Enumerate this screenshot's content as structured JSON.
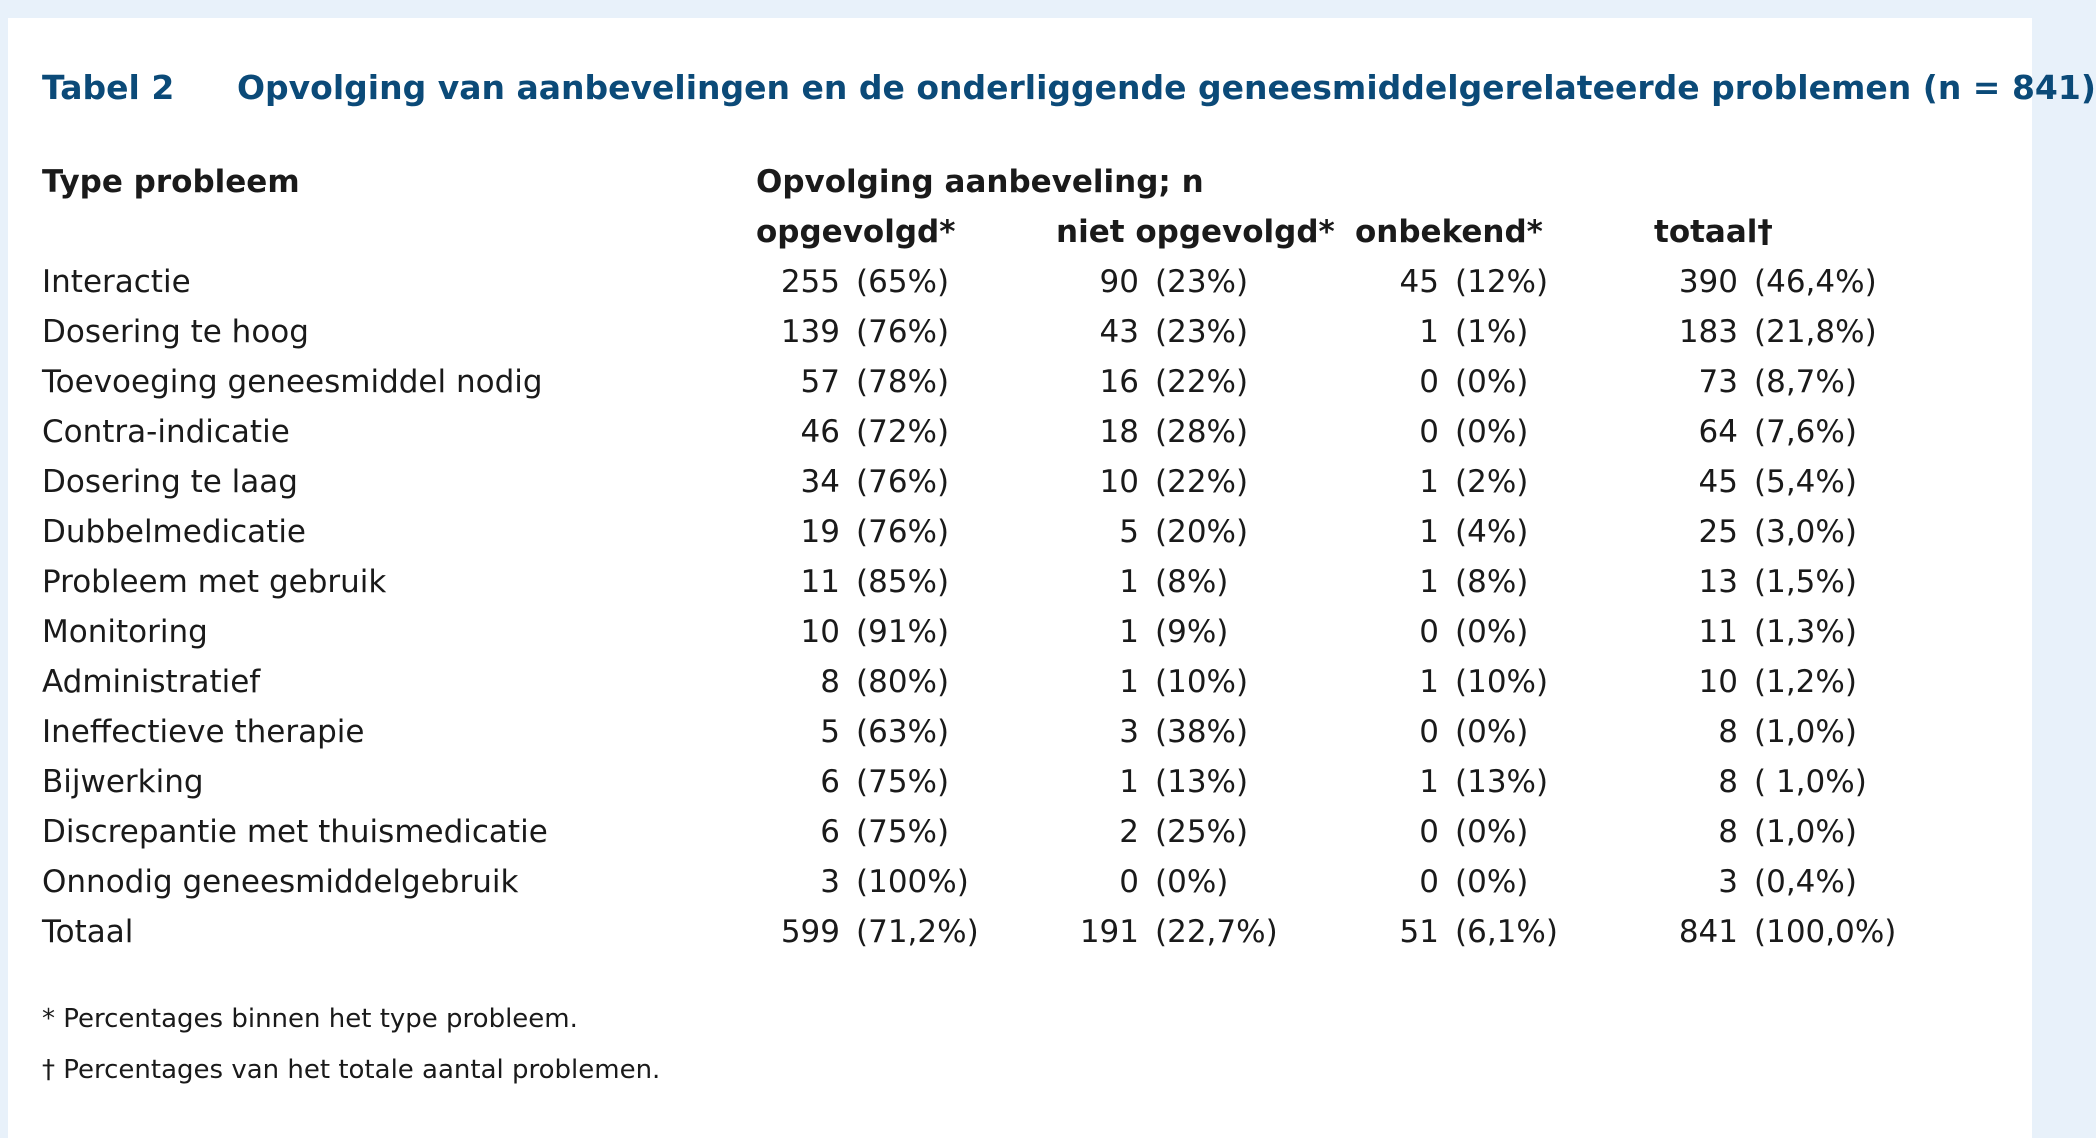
{
  "table": {
    "label": "Tabel 2",
    "title": "Opvolging van aanbevelingen en de onderliggende geneesmiddelgerelateerde problemen (n = 841)",
    "header": {
      "type_col": "Type probleem",
      "group": "Opvolging aanbeveling; n",
      "cols": [
        "opgevolgd*",
        "niet opgevolgd*",
        "onbekend*",
        "totaal†"
      ]
    },
    "rows": [
      {
        "label": "Interactie",
        "cells": [
          [
            "255",
            "(65%)"
          ],
          [
            "90",
            "(23%)"
          ],
          [
            "45",
            "(12%)"
          ],
          [
            "390",
            "(46,4%)"
          ]
        ]
      },
      {
        "label": "Dosering te hoog",
        "cells": [
          [
            "139",
            "(76%)"
          ],
          [
            "43",
            "(23%)"
          ],
          [
            "1",
            "(1%)"
          ],
          [
            "183",
            "(21,8%)"
          ]
        ]
      },
      {
        "label": "Toevoeging geneesmiddel nodig",
        "cells": [
          [
            "57",
            "(78%)"
          ],
          [
            "16",
            "(22%)"
          ],
          [
            "0",
            "(0%)"
          ],
          [
            "73",
            "(8,7%)"
          ]
        ]
      },
      {
        "label": "Contra-indicatie",
        "cells": [
          [
            "46",
            "(72%)"
          ],
          [
            "18",
            "(28%)"
          ],
          [
            "0",
            "(0%)"
          ],
          [
            "64",
            "(7,6%)"
          ]
        ]
      },
      {
        "label": "Dosering te laag",
        "cells": [
          [
            "34",
            "(76%)"
          ],
          [
            "10",
            "(22%)"
          ],
          [
            "1",
            "(2%)"
          ],
          [
            "45",
            "(5,4%)"
          ]
        ]
      },
      {
        "label": "Dubbelmedicatie",
        "cells": [
          [
            "19",
            "(76%)"
          ],
          [
            "5",
            "(20%)"
          ],
          [
            "1",
            "(4%)"
          ],
          [
            "25",
            "(3,0%)"
          ]
        ]
      },
      {
        "label": "Probleem met gebruik",
        "cells": [
          [
            "11",
            "(85%)"
          ],
          [
            "1",
            "(8%)"
          ],
          [
            "1",
            "(8%)"
          ],
          [
            "13",
            "(1,5%)"
          ]
        ]
      },
      {
        "label": "Monitoring",
        "cells": [
          [
            "10",
            "(91%)"
          ],
          [
            "1",
            "(9%)"
          ],
          [
            "0",
            "(0%)"
          ],
          [
            "11",
            "(1,3%)"
          ]
        ]
      },
      {
        "label": "Administratief",
        "cells": [
          [
            "8",
            "(80%)"
          ],
          [
            "1",
            "(10%)"
          ],
          [
            "1",
            "(10%)"
          ],
          [
            "10",
            "(1,2%)"
          ]
        ]
      },
      {
        "label": "Ineffectieve therapie",
        "cells": [
          [
            "5",
            "(63%)"
          ],
          [
            "3",
            "(38%)"
          ],
          [
            "0",
            "(0%)"
          ],
          [
            "8",
            "(1,0%)"
          ]
        ]
      },
      {
        "label": "Bijwerking",
        "cells": [
          [
            "6",
            "(75%)"
          ],
          [
            "1",
            "(13%)"
          ],
          [
            "1",
            "(13%)"
          ],
          [
            "8",
            "( 1,0%)"
          ]
        ]
      },
      {
        "label": "Discrepantie met thuismedicatie",
        "cells": [
          [
            "6",
            "(75%)"
          ],
          [
            "2",
            "(25%)"
          ],
          [
            "0",
            "(0%)"
          ],
          [
            "8",
            "(1,0%)"
          ]
        ]
      },
      {
        "label": "Onnodig geneesmiddelgebruik",
        "cells": [
          [
            "3",
            "(100%)"
          ],
          [
            "0",
            "(0%)"
          ],
          [
            "0",
            "(0%)"
          ],
          [
            "3",
            "(0,4%)"
          ]
        ]
      },
      {
        "label": "Totaal",
        "cells": [
          [
            "599",
            "(71,2%)"
          ],
          [
            "191",
            "(22,7%)"
          ],
          [
            "51",
            "(6,1%)"
          ],
          [
            "841",
            "(100,0%)"
          ]
        ]
      }
    ],
    "footnotes": [
      "* Percentages binnen het type probleem.",
      "† Percentages van het totale aantal problemen."
    ]
  },
  "colors": {
    "title": "#0b4a78",
    "page_background": "#e8f1fa",
    "panel": "#ffffff"
  }
}
